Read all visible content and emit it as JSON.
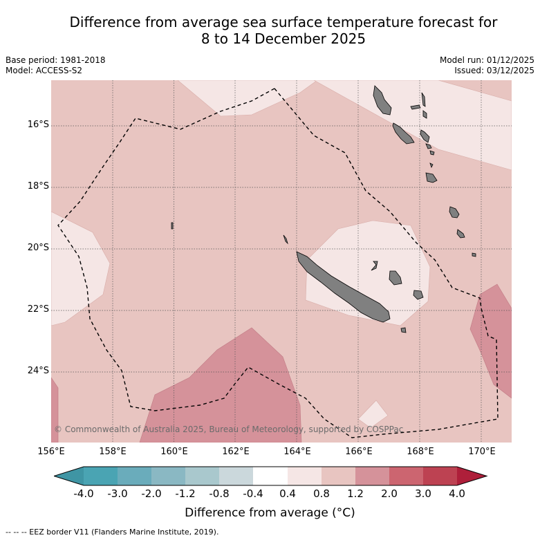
{
  "title": {
    "line1": "Difference from average sea surface temperature forecast for",
    "line2": "8 to 14 December 2025"
  },
  "meta": {
    "base_period": "Base period: 1981-2018",
    "model": "Model: ACCESS-S2",
    "model_run": "Model run: 01/12/2025",
    "issued": "Issued: 03/12/2025"
  },
  "axes": {
    "x_ticks": [
      "156°E",
      "158°E",
      "160°E",
      "162°E",
      "164°E",
      "166°E",
      "168°E",
      "170°E"
    ],
    "y_ticks": [
      "16°S",
      "18°S",
      "20°S",
      "22°S",
      "24°S"
    ]
  },
  "copyright": "© Commonwealth of Australia 2025, Bureau of Meteorology, supported by COSPPac",
  "colorbar": {
    "labels": [
      "-4.0",
      "-3.0",
      "-2.0",
      "-1.2",
      "-0.8",
      "-0.4",
      "0.4",
      "0.8",
      "1.2",
      "2.0",
      "3.0",
      "4.0"
    ],
    "colors": [
      "#3f95a4",
      "#4aa4b3",
      "#6aacbb",
      "#8ab8c3",
      "#a9c8cd",
      "#cbd8dc",
      "#ffffff",
      "#f5e6e5",
      "#e8c5c1",
      "#d5929a",
      "#cc6570",
      "#bd4252",
      "#ae1f3a"
    ],
    "title": "Difference from average (°C)"
  },
  "footnote": "--  --  -- EEZ border V11 (Flanders Marine Institute, 2019)."
}
